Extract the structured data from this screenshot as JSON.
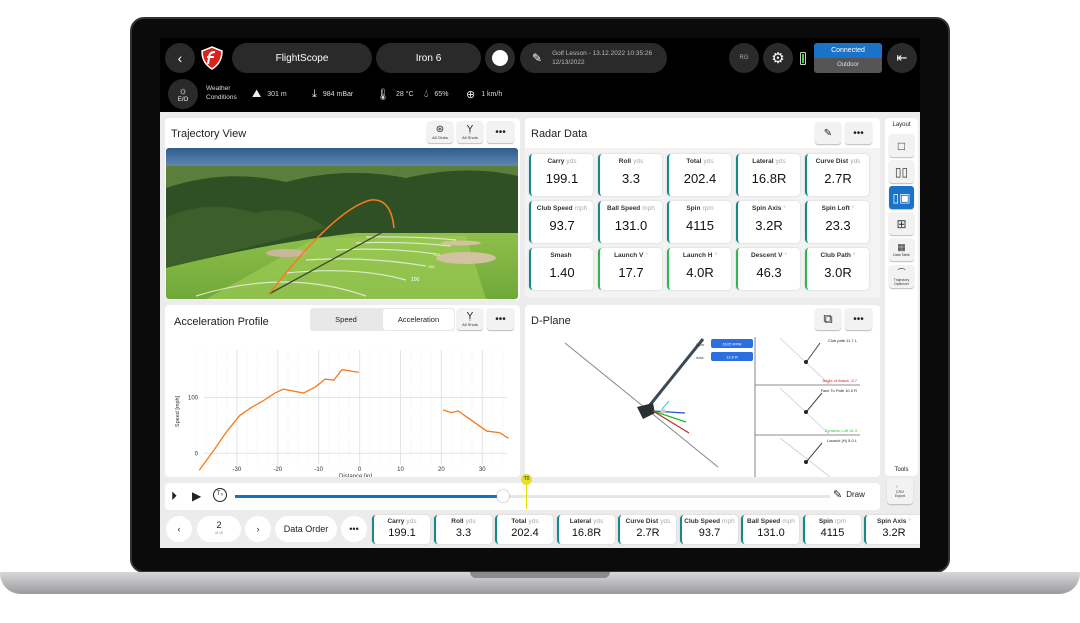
{
  "header": {
    "brand": "FlightScope",
    "club": "Iron 6",
    "session_title": "Golf Lesson - 13.12.2022 10:35:26",
    "session_date": "12/13/2022",
    "user_initials": "RG",
    "connection_status": "Connected",
    "environment": "Outdoor",
    "accent": "#1a73c9"
  },
  "weather": {
    "label_line1": "Weather",
    "label_line2": "Conditions",
    "badge": "E/O",
    "altitude": "301 m",
    "pressure": "984 mBar",
    "temperature": "28 °C",
    "humidity": "65%",
    "wind": "1 km/h"
  },
  "trajectory": {
    "title": "Trajectory View",
    "all_clubs": "All Clubs",
    "all_shots": "All Shots",
    "distance_markers": [
      "100",
      "150",
      "200"
    ]
  },
  "radar": {
    "title": "Radar Data",
    "cards": [
      {
        "label": "Carry",
        "unit": "yds",
        "value": "199.1",
        "color": "#138a8a"
      },
      {
        "label": "Roll",
        "unit": "yds",
        "value": "3.3",
        "color": "#138a8a"
      },
      {
        "label": "Total",
        "unit": "yds",
        "value": "202.4",
        "color": "#138a8a"
      },
      {
        "label": "Lateral",
        "unit": "yds",
        "value": "16.8R",
        "color": "#138a8a"
      },
      {
        "label": "Curve Dist",
        "unit": "yds",
        "value": "2.7R",
        "color": "#138a8a"
      },
      {
        "label": "Club Speed",
        "unit": "mph",
        "value": "93.7",
        "color": "#138a8a"
      },
      {
        "label": "Ball Speed",
        "unit": "mph",
        "value": "131.0",
        "color": "#138a8a"
      },
      {
        "label": "Spin",
        "unit": "rpm",
        "value": "4115",
        "color": "#138a8a"
      },
      {
        "label": "Spin Axis",
        "unit": "°",
        "value": "3.2R",
        "color": "#138a8a"
      },
      {
        "label": "Spin Loft",
        "unit": "°",
        "value": "23.3",
        "color": "#138a8a"
      },
      {
        "label": "Smash",
        "unit": "",
        "value": "1.40",
        "color": "#138a8a"
      },
      {
        "label": "Launch V",
        "unit": "°",
        "value": "17.7",
        "color": "#2db84b"
      },
      {
        "label": "Launch H",
        "unit": "°",
        "value": "4.0R",
        "color": "#2db84b"
      },
      {
        "label": "Descent V",
        "unit": "°",
        "value": "46.3",
        "color": "#2db84b"
      },
      {
        "label": "Club Path",
        "unit": "°",
        "value": "3.0R",
        "color": "#2db84b"
      }
    ]
  },
  "acceleration": {
    "title": "Acceleration Profile",
    "tabs": [
      "Speed",
      "Acceleration"
    ],
    "active_tab": "Acceleration",
    "all_shots": "All Shots"
  },
  "chart_data": {
    "type": "line",
    "title": "",
    "xlabel": "Distance [in]",
    "ylabel": "Speed [mph]",
    "xlim": [
      -40,
      38
    ],
    "ylim": [
      -35,
      185
    ],
    "xticks": [
      -30,
      -20,
      -10,
      0,
      10,
      20,
      30
    ],
    "yticks": [
      0,
      100
    ],
    "grid": true,
    "color": "#f57c1f",
    "segments": [
      [
        [
          -39.2,
          -30
        ],
        [
          -35.5,
          7
        ],
        [
          -32.6,
          38
        ],
        [
          -29.3,
          68
        ],
        [
          -26.5,
          82
        ],
        [
          -23.6,
          94
        ],
        [
          -20.7,
          108
        ],
        [
          -18.7,
          115
        ],
        [
          -13.7,
          108
        ],
        [
          -10.8,
          119
        ],
        [
          -8.4,
          133
        ],
        [
          -6.3,
          131
        ],
        [
          -4.3,
          150
        ],
        [
          -0.2,
          145
        ]
      ],
      [
        [
          20.4,
          78
        ],
        [
          22.4,
          73
        ],
        [
          24.1,
          76
        ],
        [
          27.4,
          59
        ],
        [
          31.1,
          40
        ],
        [
          34.3,
          37
        ],
        [
          36.4,
          27
        ]
      ]
    ]
  },
  "dplane": {
    "title": "D-Plane",
    "spin_label": "Spin",
    "spin_value": "6105 RPM",
    "axis_label": "Axis",
    "axis_value": "12.8 R",
    "club_path": "Club path  11.7 L",
    "angle_of_attack": "Angle of Attack  -9.7",
    "face_to_path": "Face To Path  10.0 R",
    "dynamic_loft": "Dynamic Loft  34.3",
    "launch_h": "Launch (H)  5.0 L"
  },
  "sidebar": {
    "layout_label": "Layout",
    "data_table": "Data Table",
    "trajectory_optimizer": "Trajectory Optimizer",
    "tools_label": "Tools",
    "export": "Export",
    "csv": "CSV"
  },
  "timeline": {
    "progress": 0.45,
    "marker": "T0",
    "draw": "Draw"
  },
  "bottom": {
    "shot_number": "2",
    "shot_total": "of 15",
    "data_order": "Data Order",
    "cards": [
      {
        "label": "Carry",
        "unit": "yds",
        "value": "199.1"
      },
      {
        "label": "Roll",
        "unit": "yds",
        "value": "3.3"
      },
      {
        "label": "Total",
        "unit": "yds",
        "value": "202.4"
      },
      {
        "label": "Lateral",
        "unit": "yds",
        "value": "16.8R"
      },
      {
        "label": "Curve Dist",
        "unit": "yds",
        "value": "2.7R"
      },
      {
        "label": "Club Speed",
        "unit": "mph",
        "value": "93.7"
      },
      {
        "label": "Ball Speed",
        "unit": "mph",
        "value": "131.0"
      },
      {
        "label": "Spin",
        "unit": "rpm",
        "value": "4115"
      },
      {
        "label": "Spin Axis",
        "unit": "°",
        "value": "3.2R"
      }
    ]
  }
}
